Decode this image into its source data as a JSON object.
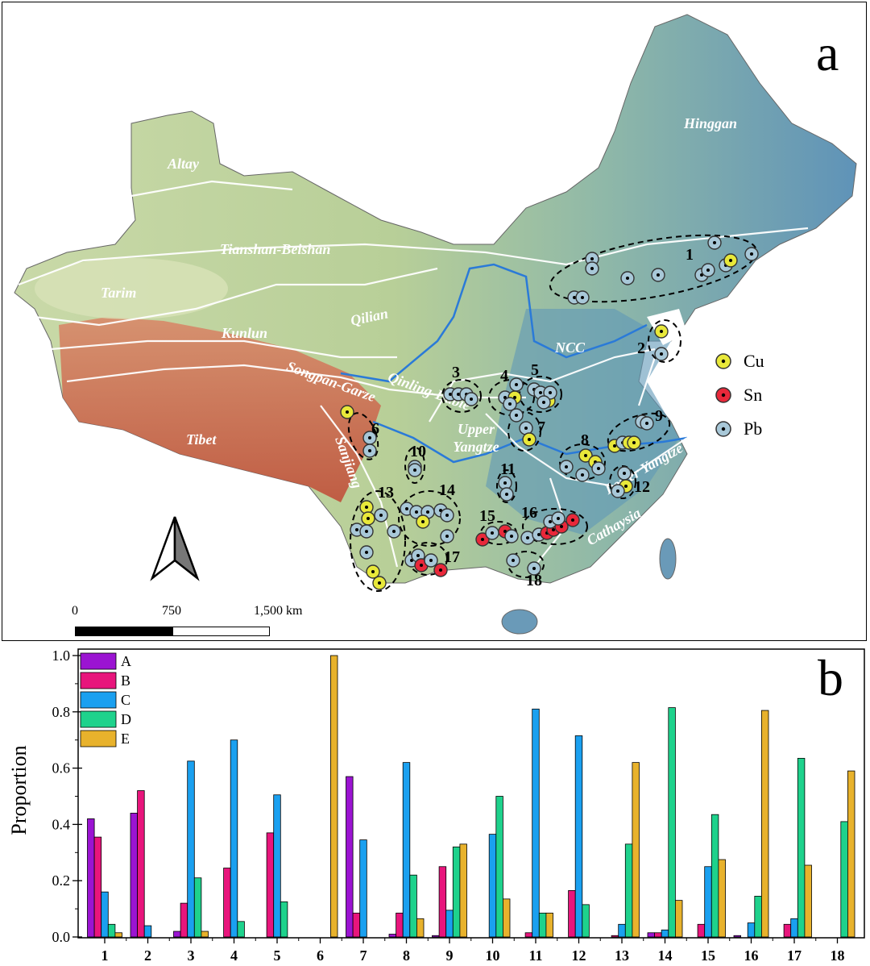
{
  "map": {
    "panel_label": "a",
    "regions": [
      "Altay",
      "Tianshan-Beishan",
      "Tarim",
      "Qilian",
      "Kunlun",
      "Songpan-Garze",
      "Qinling-Dabie",
      "Tibet",
      "Sanjiang",
      "Upper Yangtze",
      "Lower Yangtze",
      "Cathaysia",
      "NCC",
      "Hinggan"
    ],
    "cluster_numbers": [
      "1",
      "2",
      "3",
      "4",
      "5",
      "6",
      "7",
      "8",
      "9",
      "10",
      "11",
      "12",
      "13",
      "14",
      "15",
      "16",
      "17",
      "18"
    ],
    "legend": [
      {
        "label": "Cu",
        "color": "#e8e83a"
      },
      {
        "label": "Sn",
        "color": "#e8283a"
      },
      {
        "label": "Pb",
        "color": "#a8c8d8"
      }
    ],
    "scale_bar": {
      "labels": [
        "0",
        "750",
        "1,500 km"
      ]
    }
  },
  "chart_data": {
    "type": "bar",
    "panel_label": "b",
    "ylabel": "Proportion",
    "xlabel": "",
    "ylim": [
      0,
      1.0
    ],
    "yticks": [
      "0.0",
      "0.2",
      "0.4",
      "0.6",
      "0.8",
      "1.0"
    ],
    "categories": [
      "1",
      "2",
      "3",
      "4",
      "5",
      "6",
      "7",
      "8",
      "9",
      "10",
      "11",
      "12",
      "13",
      "14",
      "15",
      "16",
      "17",
      "18"
    ],
    "legend_position": "top-left",
    "series": [
      {
        "name": "A",
        "color": "#9b14d2",
        "values": [
          0.42,
          0.44,
          0.02,
          0,
          0,
          0,
          0.57,
          0.01,
          0.005,
          0,
          0,
          0,
          0,
          0.015,
          0,
          0.005,
          0,
          0
        ]
      },
      {
        "name": "B",
        "color": "#e8157c",
        "values": [
          0.355,
          0.52,
          0.12,
          0.245,
          0.37,
          0,
          0.085,
          0.085,
          0.25,
          0,
          0.015,
          0.165,
          0.005,
          0.015,
          0.045,
          0,
          0.045,
          0
        ]
      },
      {
        "name": "C",
        "color": "#1aa0f0",
        "values": [
          0.16,
          0.04,
          0.625,
          0.7,
          0.505,
          0,
          0.345,
          0.62,
          0.095,
          0.365,
          0.81,
          0.715,
          0.045,
          0.025,
          0.25,
          0.05,
          0.065,
          0
        ]
      },
      {
        "name": "D",
        "color": "#1ed28c",
        "values": [
          0.045,
          0,
          0.21,
          0.055,
          0.125,
          0,
          0,
          0.22,
          0.32,
          0.5,
          0.085,
          0.115,
          0.33,
          0.815,
          0.435,
          0.145,
          0.635,
          0.41
        ]
      },
      {
        "name": "E",
        "color": "#e8b22c",
        "values": [
          0.015,
          0,
          0.02,
          0,
          0,
          1.0,
          0,
          0.065,
          0.33,
          0.135,
          0.085,
          0,
          0.62,
          0.13,
          0.275,
          0.805,
          0.255,
          0.59
        ]
      }
    ]
  }
}
